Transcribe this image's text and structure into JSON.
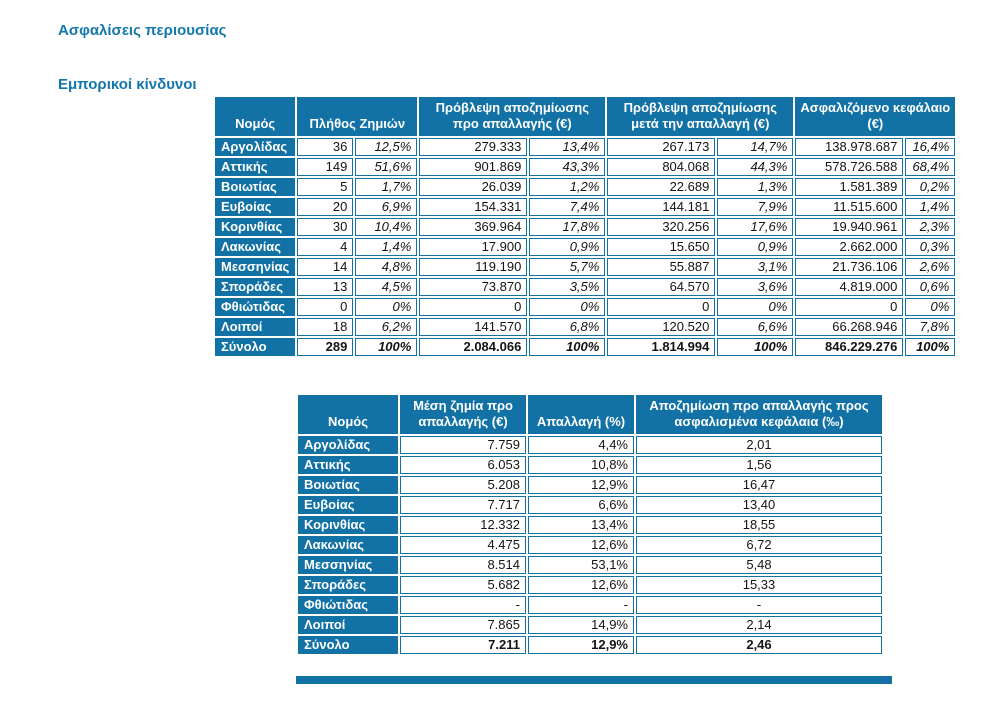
{
  "page": {
    "section_title": "Ασφαλίσεις περιουσίας",
    "subsection_title": "Εμπορικοί κίνδυνοι"
  },
  "colors": {
    "accent_blue": "#1272A6",
    "title_blue": "#1377AE",
    "cell_text": "#141414"
  },
  "table1": {
    "headers": {
      "nomos": "Νομός",
      "plithos": "Πλήθος Ζημιών",
      "provlepsi_pro": "Πρόβλεψη αποζημίωσης προ απαλλαγής (€)",
      "provlepsi_meta": "Πρόβλεψη αποζημίωσης μετά την απαλλαγή (€)",
      "asfalizomeno": "Ασφαλιζόμενο κεφάλαιο (€)"
    },
    "rows": [
      {
        "nomos": "Αργολίδας",
        "count": "36",
        "count_pct": "12,5%",
        "pre": "279.333",
        "pre_pct": "13,4%",
        "post": "267.173",
        "post_pct": "14,7%",
        "capital": "138.978.687",
        "capital_pct": "16,4%"
      },
      {
        "nomos": "Αττικής",
        "count": "149",
        "count_pct": "51,6%",
        "pre": "901.869",
        "pre_pct": "43,3%",
        "post": "804.068",
        "post_pct": "44,3%",
        "capital": "578.726.588",
        "capital_pct": "68,4%"
      },
      {
        "nomos": "Βοιωτίας",
        "count": "5",
        "count_pct": "1,7%",
        "pre": "26.039",
        "pre_pct": "1,2%",
        "post": "22.689",
        "post_pct": "1,3%",
        "capital": "1.581.389",
        "capital_pct": "0,2%"
      },
      {
        "nomos": "Ευβοίας",
        "count": "20",
        "count_pct": "6,9%",
        "pre": "154.331",
        "pre_pct": "7,4%",
        "post": "144.181",
        "post_pct": "7,9%",
        "capital": "11.515.600",
        "capital_pct": "1,4%"
      },
      {
        "nomos": "Κορινθίας",
        "count": "30",
        "count_pct": "10,4%",
        "pre": "369.964",
        "pre_pct": "17,8%",
        "post": "320.256",
        "post_pct": "17,6%",
        "capital": "19.940.961",
        "capital_pct": "2,3%"
      },
      {
        "nomos": "Λακωνίας",
        "count": "4",
        "count_pct": "1,4%",
        "pre": "17.900",
        "pre_pct": "0,9%",
        "post": "15.650",
        "post_pct": "0,9%",
        "capital": "2.662.000",
        "capital_pct": "0,3%"
      },
      {
        "nomos": "Μεσσηνίας",
        "count": "14",
        "count_pct": "4,8%",
        "pre": "119.190",
        "pre_pct": "5,7%",
        "post": "55.887",
        "post_pct": "3,1%",
        "capital": "21.736.106",
        "capital_pct": "2,6%"
      },
      {
        "nomos": "Σποράδες",
        "count": "13",
        "count_pct": "4,5%",
        "pre": "73.870",
        "pre_pct": "3,5%",
        "post": "64.570",
        "post_pct": "3,6%",
        "capital": "4.819.000",
        "capital_pct": "0,6%"
      },
      {
        "nomos": "Φθιώτιδας",
        "count": "0",
        "count_pct": "0%",
        "pre": "0",
        "pre_pct": "0%",
        "post": "0",
        "post_pct": "0%",
        "capital": "0",
        "capital_pct": "0%"
      },
      {
        "nomos": "Λοιποί",
        "count": "18",
        "count_pct": "6,2%",
        "pre": "141.570",
        "pre_pct": "6,8%",
        "post": "120.520",
        "post_pct": "6,6%",
        "capital": "66.268.946",
        "capital_pct": "7,8%"
      }
    ],
    "total": {
      "nomos": "Σύνολο",
      "count": "289",
      "count_pct": "100%",
      "pre": "2.084.066",
      "pre_pct": "100%",
      "post": "1.814.994",
      "post_pct": "100%",
      "capital": "846.229.276",
      "capital_pct": "100%"
    }
  },
  "table2": {
    "headers": {
      "nomos": "Νομός",
      "mesi_zimia": "Μέση ζημία προ απαλλαγής (€)",
      "apallagi": "Απαλλαγή (%)",
      "apozimiosi_pros_kefalaia": "Αποζημίωση προ απαλλαγής προς ασφαλισμένα κεφάλαια (‰)"
    },
    "rows": [
      {
        "nomos": "Αργολίδας",
        "avg": "7.759",
        "pct": "4,4%",
        "ratio": "2,01"
      },
      {
        "nomos": "Αττικής",
        "avg": "6.053",
        "pct": "10,8%",
        "ratio": "1,56"
      },
      {
        "nomos": "Βοιωτίας",
        "avg": "5.208",
        "pct": "12,9%",
        "ratio": "16,47"
      },
      {
        "nomos": "Ευβοίας",
        "avg": "7.717",
        "pct": "6,6%",
        "ratio": "13,40"
      },
      {
        "nomos": "Κορινθίας",
        "avg": "12.332",
        "pct": "13,4%",
        "ratio": "18,55"
      },
      {
        "nomos": "Λακωνίας",
        "avg": "4.475",
        "pct": "12,6%",
        "ratio": "6,72"
      },
      {
        "nomos": "Μεσσηνίας",
        "avg": "8.514",
        "pct": "53,1%",
        "ratio": "5,48"
      },
      {
        "nomos": "Σποράδες",
        "avg": "5.682",
        "pct": "12,6%",
        "ratio": "15,33"
      },
      {
        "nomos": "Φθιώτιδας",
        "avg": "-",
        "pct": "-",
        "ratio": "-"
      },
      {
        "nomos": "Λοιποί",
        "avg": "7.865",
        "pct": "14,9%",
        "ratio": "2,14"
      }
    ],
    "total": {
      "nomos": "Σύνολο",
      "avg": "7.211",
      "pct": "12,9%",
      "ratio": "2,46"
    }
  }
}
